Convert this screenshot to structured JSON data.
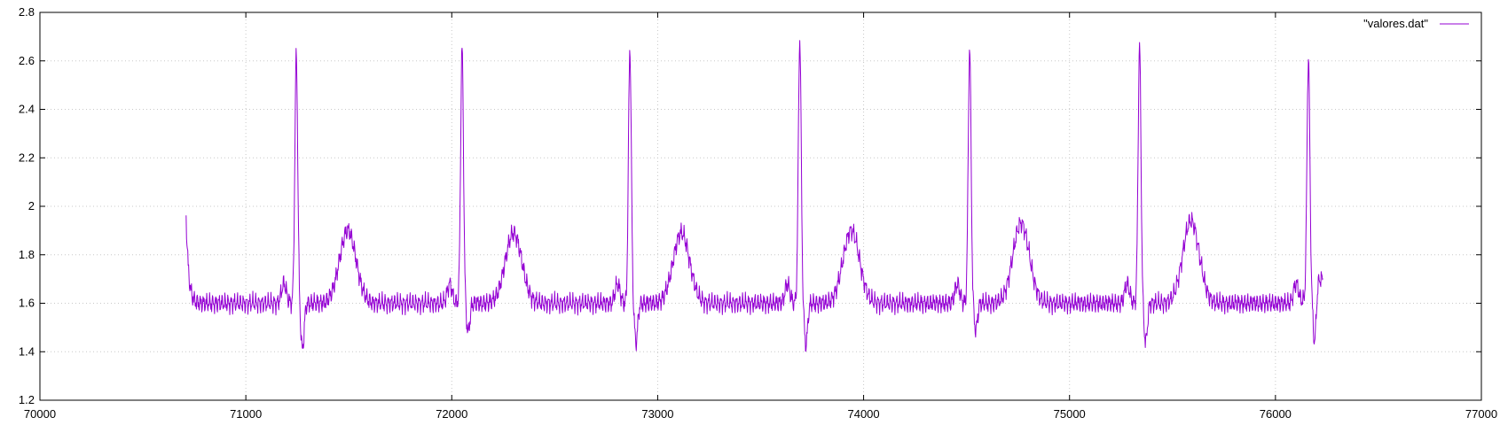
{
  "chart_data": {
    "type": "line",
    "title": "",
    "xlabel": "",
    "ylabel": "",
    "xlim": [
      70000,
      77000
    ],
    "ylim": [
      1.2,
      2.8
    ],
    "grid": true,
    "legend_placement": "top-right",
    "xticks": [
      70000,
      71000,
      72000,
      73000,
      74000,
      75000,
      76000,
      77000
    ],
    "xtick_labels": [
      "70000",
      "71000",
      "72000",
      "73000",
      "74000",
      "75000",
      "76000",
      "77000"
    ],
    "yticks": [
      1.2,
      1.4,
      1.6,
      1.8,
      2.0,
      2.2,
      2.4,
      2.6,
      2.8
    ],
    "ytick_labels": [
      "1.2",
      "1.4",
      "1.6",
      "1.8",
      "2",
      "2.2",
      "2.4",
      "2.6",
      "2.8"
    ],
    "series": [
      {
        "name": "\"valores.dat\"",
        "color": "#9400d3",
        "x_start": 70710,
        "x_end": 76230,
        "start_value": 1.96,
        "baseline": 1.6,
        "beats": [
          {
            "r_time": 71245,
            "r_peak": 2.62,
            "s_trough": 1.41,
            "t_time": 71495,
            "t_peak": 1.92
          },
          {
            "r_time": 72050,
            "r_peak": 2.65,
            "s_trough": 1.48,
            "t_time": 72300,
            "t_peak": 1.91
          },
          {
            "r_time": 72865,
            "r_peak": 2.65,
            "s_trough": 1.44,
            "t_time": 73115,
            "t_peak": 1.91
          },
          {
            "r_time": 73690,
            "r_peak": 2.69,
            "s_trough": 1.43,
            "t_time": 73940,
            "t_peak": 1.92
          },
          {
            "r_time": 74515,
            "r_peak": 2.65,
            "s_trough": 1.49,
            "t_time": 74765,
            "t_peak": 1.95
          },
          {
            "r_time": 75340,
            "r_peak": 2.66,
            "s_trough": 1.44,
            "t_time": 75590,
            "t_peak": 1.96
          },
          {
            "r_time": 76160,
            "r_peak": 2.58,
            "s_trough": 1.37,
            "t_time": 76220,
            "t_peak": 1.72
          }
        ]
      }
    ]
  }
}
